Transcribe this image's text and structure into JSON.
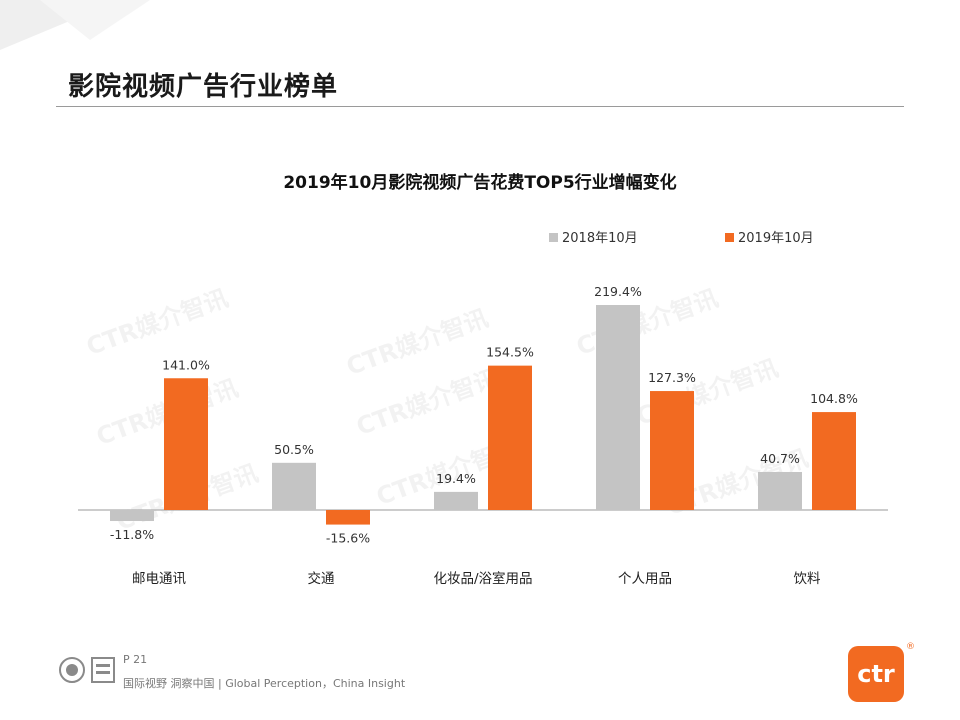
{
  "page": {
    "title": "影院视频广告行业榜单",
    "page_number": "P 21",
    "slogan": "国际视野  洞察中国 |  Global Perception，China Insight",
    "watermark": "CTR媒介智讯",
    "brand_logo_text": "ctr",
    "brand_mark": "®"
  },
  "colors": {
    "series_2018": "#c4c4c4",
    "series_2019": "#f26a21",
    "accent": "#f26a21"
  },
  "chart_data": {
    "type": "bar",
    "title": "2019年10月影院视频广告花费TOP5行业增幅变化",
    "categories": [
      "邮电通讯",
      "交通",
      "化妆品/浴室用品",
      "个人用品",
      "饮料"
    ],
    "series": [
      {
        "name": "2018年10月",
        "values": [
          -11.8,
          50.5,
          19.4,
          219.4,
          40.7
        ],
        "labels": [
          "-11.8%",
          "50.5%",
          "19.4%",
          "219.4%",
          "40.7%"
        ]
      },
      {
        "name": "2019年10月",
        "values": [
          141.0,
          -15.6,
          154.5,
          127.3,
          104.8
        ],
        "labels": [
          "141.0%",
          "-15.6%",
          "154.5%",
          "127.3%",
          "104.8%"
        ]
      }
    ],
    "xlabel": "",
    "ylabel": "",
    "ylim": [
      -20,
      230
    ],
    "grid": false,
    "legend": "top-right"
  }
}
